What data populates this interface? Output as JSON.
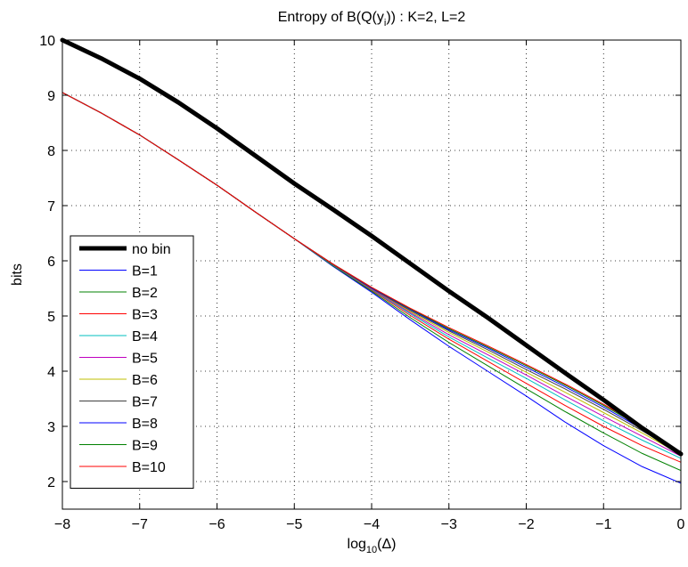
{
  "chart_data": {
    "type": "line",
    "title": {
      "main": "Entropy of B(Q(y",
      "sub": "i",
      "rest": ")) : K=2, L=2"
    },
    "xlabel": {
      "main": "log",
      "sub": "10",
      "rest": "(Δ)"
    },
    "ylabel": "bits",
    "xlim": [
      -8,
      0
    ],
    "ylim": [
      1.5,
      10
    ],
    "xticks": [
      -8,
      -7,
      -6,
      -5,
      -4,
      -3,
      -2,
      -1,
      0
    ],
    "xtick_labels": [
      "−8",
      "−7",
      "−6",
      "−5",
      "−4",
      "−3",
      "−2",
      "−1",
      "0"
    ],
    "yticks": [
      2,
      3,
      4,
      5,
      6,
      7,
      8,
      9,
      10
    ],
    "ytick_labels": [
      "2",
      "3",
      "4",
      "5",
      "6",
      "7",
      "8",
      "9",
      "10"
    ],
    "grid": true,
    "legend_position": "bottom-left",
    "series": [
      {
        "name": "no bin",
        "color": "#000000",
        "thick": true,
        "x": [
          -8,
          -7.5,
          -7,
          -6.5,
          -6,
          -5.5,
          -5,
          -4.5,
          -4,
          -3.5,
          -3,
          -2.5,
          -2,
          -1.5,
          -1,
          -0.5,
          0
        ],
        "y": [
          10,
          9.67,
          9.3,
          8.87,
          8.4,
          7.9,
          7.4,
          6.93,
          6.45,
          5.95,
          5.45,
          4.97,
          4.47,
          3.97,
          3.48,
          2.97,
          2.5
        ]
      },
      {
        "name": "B=1",
        "color": "#0000ff",
        "x": [
          -8,
          -7.5,
          -7,
          -6.5,
          -6,
          -5.5,
          -5,
          -4.5,
          -4,
          -3.5,
          -3,
          -2.5,
          -2,
          -1.5,
          -1,
          -0.5,
          0
        ],
        "y": [
          9.05,
          8.68,
          8.28,
          7.83,
          7.37,
          6.88,
          6.4,
          5.9,
          5.43,
          4.93,
          4.45,
          4.0,
          3.55,
          3.08,
          2.65,
          2.27,
          1.97
        ]
      },
      {
        "name": "B=2",
        "color": "#008000",
        "x": [
          -8,
          -7.5,
          -7,
          -6.5,
          -6,
          -5.5,
          -5,
          -4.5,
          -4,
          -3.5,
          -3,
          -2.5,
          -2,
          -1.5,
          -1,
          -0.5,
          0
        ],
        "y": [
          9.05,
          8.68,
          8.28,
          7.83,
          7.37,
          6.88,
          6.4,
          5.91,
          5.45,
          4.97,
          4.52,
          4.1,
          3.68,
          3.27,
          2.88,
          2.51,
          2.2
        ]
      },
      {
        "name": "B=3",
        "color": "#ff0000",
        "x": [
          -8,
          -7.5,
          -7,
          -6.5,
          -6,
          -5.5,
          -5,
          -4.5,
          -4,
          -3.5,
          -3,
          -2.5,
          -2,
          -1.5,
          -1,
          -0.5,
          0
        ],
        "y": [
          9.05,
          8.68,
          8.28,
          7.83,
          7.37,
          6.88,
          6.4,
          5.92,
          5.47,
          5.01,
          4.58,
          4.18,
          3.78,
          3.38,
          3.0,
          2.65,
          2.35
        ]
      },
      {
        "name": "B=4",
        "color": "#00bfbf",
        "x": [
          -8,
          -7.5,
          -7,
          -6.5,
          -6,
          -5.5,
          -5,
          -4.5,
          -4,
          -3.5,
          -3,
          -2.5,
          -2,
          -1.5,
          -1,
          -0.5,
          0
        ],
        "y": [
          9.05,
          8.68,
          8.28,
          7.83,
          7.37,
          6.88,
          6.4,
          5.92,
          5.48,
          5.04,
          4.62,
          4.24,
          3.87,
          3.48,
          3.1,
          2.75,
          2.42
        ]
      },
      {
        "name": "B=5",
        "color": "#bf00bf",
        "x": [
          -8,
          -7.5,
          -7,
          -6.5,
          -6,
          -5.5,
          -5,
          -4.5,
          -4,
          -3.5,
          -3,
          -2.5,
          -2,
          -1.5,
          -1,
          -0.5,
          0
        ],
        "y": [
          9.05,
          8.68,
          8.28,
          7.83,
          7.37,
          6.88,
          6.4,
          5.93,
          5.49,
          5.06,
          4.66,
          4.3,
          3.93,
          3.55,
          3.18,
          2.82,
          2.46
        ]
      },
      {
        "name": "B=6",
        "color": "#bfbf00",
        "x": [
          -8,
          -7.5,
          -7,
          -6.5,
          -6,
          -5.5,
          -5,
          -4.5,
          -4,
          -3.5,
          -3,
          -2.5,
          -2,
          -1.5,
          -1,
          -0.5,
          0
        ],
        "y": [
          9.05,
          8.68,
          8.28,
          7.83,
          7.37,
          6.88,
          6.4,
          5.93,
          5.5,
          5.08,
          4.7,
          4.35,
          3.98,
          3.62,
          3.25,
          2.88,
          2.49
        ]
      },
      {
        "name": "B=7",
        "color": "#404040",
        "x": [
          -8,
          -7.5,
          -7,
          -6.5,
          -6,
          -5.5,
          -5,
          -4.5,
          -4,
          -3.5,
          -3,
          -2.5,
          -2,
          -1.5,
          -1,
          -0.5,
          0
        ],
        "y": [
          9.05,
          8.68,
          8.28,
          7.83,
          7.37,
          6.88,
          6.4,
          5.93,
          5.5,
          5.1,
          4.73,
          4.39,
          4.03,
          3.68,
          3.31,
          2.92,
          2.5
        ]
      },
      {
        "name": "B=8",
        "color": "#0000ff",
        "x": [
          -8,
          -7.5,
          -7,
          -6.5,
          -6,
          -5.5,
          -5,
          -4.5,
          -4,
          -3.5,
          -3,
          -2.5,
          -2,
          -1.5,
          -1,
          -0.5,
          0
        ],
        "y": [
          9.05,
          8.68,
          8.28,
          7.83,
          7.37,
          6.88,
          6.4,
          5.94,
          5.51,
          5.12,
          4.75,
          4.42,
          4.07,
          3.72,
          3.35,
          2.95,
          2.51
        ]
      },
      {
        "name": "B=9",
        "color": "#008000",
        "x": [
          -8,
          -7.5,
          -7,
          -6.5,
          -6,
          -5.5,
          -5,
          -4.5,
          -4,
          -3.5,
          -3,
          -2.5,
          -2,
          -1.5,
          -1,
          -0.5,
          0
        ],
        "y": [
          9.05,
          8.68,
          8.28,
          7.83,
          7.37,
          6.88,
          6.4,
          5.94,
          5.52,
          5.13,
          4.77,
          4.44,
          4.1,
          3.75,
          3.38,
          2.98,
          2.52
        ]
      },
      {
        "name": "B=10",
        "color": "#ff0000",
        "x": [
          -8,
          -7.5,
          -7,
          -6.5,
          -6,
          -5.5,
          -5,
          -4.5,
          -4,
          -3.5,
          -3,
          -2.5,
          -2,
          -1.5,
          -1,
          -0.5,
          0
        ],
        "y": [
          9.05,
          8.68,
          8.28,
          7.83,
          7.37,
          6.88,
          6.4,
          5.94,
          5.52,
          5.14,
          4.79,
          4.46,
          4.12,
          3.77,
          3.4,
          3.0,
          2.53
        ]
      }
    ]
  }
}
